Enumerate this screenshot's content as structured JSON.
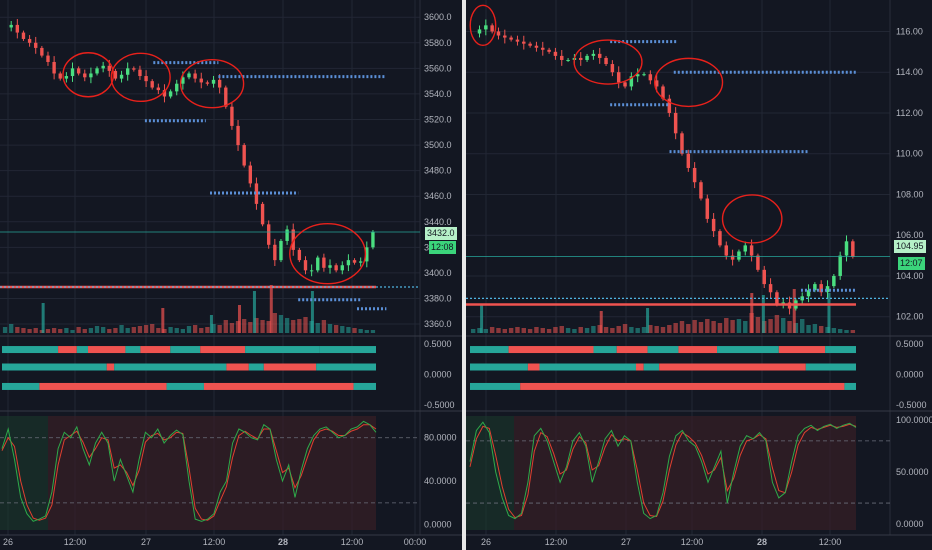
{
  "colors": {
    "background": "#131722",
    "grid": "#222734",
    "axis_text": "#b2b5be",
    "up": "#26a69a",
    "up_bright": "#4ade80",
    "down": "#ef5350",
    "level": "#5b8fd6",
    "annotation": "#e8211b",
    "stoch_k": "#2eaa4a",
    "stoch_d": "#e04030"
  },
  "panels": [
    {
      "id": "left",
      "last_price_label": "3432.0",
      "countdown_label": "12:08",
      "chart_data": [
        {
          "type": "candlestick",
          "title": "",
          "y_ticks": [
            3600.0,
            3580.0,
            3560.0,
            3540.0,
            3520.0,
            3500.0,
            3480.0,
            3460.0,
            3440.0,
            3420.0,
            3400.0,
            3380.0,
            3360.0
          ],
          "y_tick_labels": [
            "3600.0",
            "3580.0",
            "3560.0",
            "3540.0",
            "3520.0",
            "3500.0",
            "3480.0",
            "3460.0",
            "3440.0",
            "3420.0",
            "3400.0",
            "3380.0",
            "3360.0"
          ],
          "ylim": [
            3353,
            3608
          ],
          "x_ticks": [
            "26",
            "12:00",
            "27",
            "12:00",
            "28",
            "12:00",
            "00:00"
          ],
          "last_price": 3432.0,
          "horizontal_line": 3389,
          "support_line": 3389,
          "path": [
            3592,
            3594,
            3588,
            3583,
            3580,
            3576,
            3570,
            3565,
            3556,
            3552,
            3554,
            3560,
            3556,
            3553,
            3556,
            3560,
            3562,
            3558,
            3552,
            3555,
            3560,
            3559,
            3554,
            3550,
            3545,
            3543,
            3538,
            3542,
            3548,
            3553,
            3556,
            3552,
            3549,
            3548,
            3551,
            3545,
            3530,
            3515,
            3500,
            3484,
            3470,
            3454,
            3438,
            3422,
            3410,
            3425,
            3434,
            3418,
            3410,
            3402,
            3402,
            3412,
            3404,
            3406,
            3402,
            3406,
            3410,
            3408,
            3409,
            3420,
            3432
          ],
          "levels": [
            [
              3564.5,
              0.365,
              0.52
            ],
            [
              3553.5,
              0.52,
              0.92
            ],
            [
              3519,
              0.345,
              0.49
            ],
            [
              3462.5,
              0.5,
              0.71
            ],
            [
              3379,
              0.71,
              0.86
            ],
            [
              3372,
              0.85,
              0.92
            ]
          ],
          "annotations": [
            [
              0.21,
              3555,
              0.06,
              22
            ],
            [
              0.335,
              3553,
              0.07,
              24
            ],
            [
              0.505,
              3548,
              0.075,
              24
            ],
            [
              0.78,
              3415,
              0.09,
              30
            ]
          ],
          "volume": [
            6,
            9,
            6,
            5,
            4,
            5,
            3,
            4,
            5,
            4,
            5,
            3,
            6,
            4,
            5,
            7,
            6,
            4,
            5,
            8,
            5,
            6,
            7,
            8,
            9,
            5,
            4,
            6,
            5,
            4,
            7,
            8,
            5,
            6,
            9,
            8,
            13,
            10,
            12,
            14,
            11,
            15,
            13,
            12,
            20,
            18,
            15,
            13,
            14,
            16,
            12,
            10,
            13,
            9,
            8,
            7,
            6,
            5,
            4,
            3,
            3
          ],
          "volume_spikes": [
            [
              0.11,
              30
            ],
            [
              0.43,
              25
            ],
            [
              0.56,
              18
            ],
            [
              0.635,
              28
            ],
            [
              0.675,
              42
            ],
            [
              0.72,
              48
            ],
            [
              0.83,
              42
            ]
          ]
        },
        {
          "type": "table",
          "title": "",
          "y_ticks": [
            0.5,
            0.0,
            -0.5
          ],
          "y_tick_labels": [
            "0.5000",
            "0.0000",
            "-0.5000"
          ],
          "rows": [
            [
              [
                "up",
                0.15
              ],
              [
                "down",
                0.05
              ],
              [
                "up",
                0.03
              ],
              [
                "down",
                0.1
              ],
              [
                "up",
                0.04
              ],
              [
                "down",
                0.08
              ],
              [
                "up",
                0.08
              ],
              [
                "down",
                0.12
              ],
              [
                "up",
                0.2
              ],
              [
                "up",
                0.15
              ]
            ],
            [
              [
                "up",
                0.28
              ],
              [
                "down",
                0.02
              ],
              [
                "up",
                0.3
              ],
              [
                "down",
                0.06
              ],
              [
                "up",
                0.04
              ],
              [
                "down",
                0.14
              ],
              [
                "up",
                0.16
              ]
            ],
            [
              [
                "up",
                0.1
              ],
              [
                "down",
                0.34
              ],
              [
                "up",
                0.1
              ],
              [
                "down",
                0.4
              ],
              [
                "up",
                0.06
              ]
            ]
          ]
        },
        {
          "type": "line",
          "title": "",
          "y_ticks": [
            80,
            40,
            0
          ],
          "y_tick_labels": [
            "80.0000",
            "40.0000",
            "0.0000"
          ],
          "ylim": [
            -5,
            100
          ],
          "bands": [
            80,
            20
          ],
          "k": [
            70,
            88,
            60,
            25,
            10,
            3,
            5,
            8,
            30,
            70,
            85,
            80,
            90,
            70,
            55,
            75,
            85,
            75,
            40,
            60,
            45,
            30,
            60,
            85,
            80,
            88,
            75,
            82,
            87,
            83,
            40,
            5,
            3,
            5,
            10,
            30,
            40,
            75,
            88,
            85,
            80,
            78,
            92,
            88,
            60,
            40,
            55,
            25,
            50,
            70,
            82,
            88,
            90,
            85,
            80,
            82,
            88,
            90,
            95,
            92,
            85
          ],
          "d": [
            68,
            80,
            72,
            40,
            18,
            6,
            4,
            6,
            18,
            55,
            78,
            82,
            86,
            76,
            62,
            70,
            80,
            78,
            52,
            55,
            48,
            36,
            50,
            76,
            82,
            84,
            78,
            80,
            85,
            84,
            52,
            15,
            5,
            4,
            8,
            22,
            35,
            62,
            82,
            86,
            82,
            79,
            88,
            88,
            68,
            48,
            52,
            34,
            45,
            62,
            78,
            86,
            88,
            86,
            82,
            82,
            86,
            88,
            92,
            92,
            88
          ]
        }
      ]
    },
    {
      "id": "right",
      "last_price_label": "104.95",
      "countdown_label": "12:07",
      "chart_data": [
        {
          "type": "candlestick",
          "title": "",
          "y_ticks": [
            116.0,
            114.0,
            112.0,
            110.0,
            108.0,
            106.0,
            104.0,
            102.0
          ],
          "y_tick_labels": [
            "116.00",
            "114.00",
            "112.00",
            "110.00",
            "108.00",
            "106.00",
            "104.00",
            "102.00"
          ],
          "ylim": [
            101.2,
            117.2
          ],
          "x_ticks": [
            "26",
            "12:00",
            "27",
            "12:00",
            "28",
            "12:00"
          ],
          "last_price": 104.95,
          "horizontal_line": 102.9,
          "support_line": 102.6,
          "path": [
            115.9,
            116.1,
            116.3,
            116.0,
            115.8,
            115.7,
            115.6,
            115.5,
            115.4,
            115.3,
            115.2,
            115.1,
            115.0,
            114.8,
            114.6,
            114.6,
            114.7,
            114.6,
            114.8,
            114.9,
            114.7,
            114.4,
            114.0,
            113.5,
            113.3,
            113.8,
            113.9,
            113.9,
            113.6,
            113.3,
            112.7,
            112.0,
            111.0,
            110.0,
            109.3,
            108.6,
            107.8,
            106.8,
            106.2,
            105.5,
            105.0,
            104.8,
            105.2,
            105.5,
            105.0,
            104.3,
            103.6,
            103.2,
            102.6,
            102.7,
            102.4,
            102.8,
            103.0,
            103.3,
            103.6,
            103.2,
            103.5,
            104.0,
            105.0,
            105.7,
            104.95
          ],
          "levels": [
            [
              115.5,
              0.34,
              0.5
            ],
            [
              114.0,
              0.49,
              0.92
            ],
            [
              112.4,
              0.34,
              0.48
            ],
            [
              110.1,
              0.48,
              0.81
            ],
            [
              103.3,
              0.79,
              0.92
            ]
          ],
          "annotations": [
            [
              0.04,
              116.3,
              0.03,
              20
            ],
            [
              0.335,
              114.5,
              0.08,
              22
            ],
            [
              0.525,
              113.5,
              0.08,
              24
            ],
            [
              0.675,
              106.8,
              0.07,
              24
            ]
          ],
          "volume": [
            4,
            5,
            4,
            6,
            5,
            4,
            5,
            6,
            5,
            4,
            6,
            5,
            4,
            6,
            7,
            5,
            4,
            6,
            5,
            7,
            8,
            6,
            5,
            7,
            9,
            6,
            5,
            6,
            8,
            7,
            6,
            8,
            10,
            12,
            9,
            13,
            11,
            14,
            12,
            10,
            15,
            13,
            14,
            12,
            20,
            16,
            12,
            14,
            18,
            15,
            12,
            10,
            14,
            8,
            9,
            7,
            6,
            5,
            4,
            3,
            3
          ],
          "volume_spikes": [
            [
              0.03,
              28
            ],
            [
              0.34,
              22
            ],
            [
              0.46,
              25
            ],
            [
              0.73,
              40
            ],
            [
              0.76,
              38
            ],
            [
              0.84,
              44
            ],
            [
              0.93,
              40
            ]
          ]
        },
        {
          "type": "table",
          "title": "",
          "y_ticks": [
            0.5,
            0.0,
            -0.5
          ],
          "y_tick_labels": [
            "0.5000",
            "0.0000",
            "-0.5000"
          ],
          "rows": [
            [
              [
                "up",
                0.1
              ],
              [
                "down",
                0.22
              ],
              [
                "up",
                0.06
              ],
              [
                "down",
                0.08
              ],
              [
                "up",
                0.08
              ],
              [
                "down",
                0.1
              ],
              [
                "up",
                0.16
              ],
              [
                "down",
                0.12
              ],
              [
                "up",
                0.08
              ]
            ],
            [
              [
                "up",
                0.15
              ],
              [
                "down",
                0.03
              ],
              [
                "up",
                0.25
              ],
              [
                "down",
                0.02
              ],
              [
                "up",
                0.04
              ],
              [
                "down",
                0.38
              ],
              [
                "up",
                0.13
              ]
            ],
            [
              [
                "up",
                0.13
              ],
              [
                "down",
                0.84
              ],
              [
                "up",
                0.03
              ]
            ]
          ]
        },
        {
          "type": "line",
          "title": "",
          "y_ticks": [
            100,
            50,
            0
          ],
          "y_tick_labels": [
            "100.0000",
            "50.0000",
            "0.0000"
          ],
          "ylim": [
            -6,
            104
          ],
          "bands": [
            80,
            20
          ],
          "k": [
            60,
            90,
            98,
            88,
            50,
            25,
            8,
            5,
            10,
            40,
            85,
            92,
            80,
            60,
            40,
            55,
            80,
            88,
            75,
            40,
            60,
            82,
            90,
            75,
            85,
            80,
            40,
            10,
            5,
            8,
            30,
            65,
            85,
            90,
            80,
            75,
            60,
            40,
            55,
            70,
            20,
            50,
            75,
            85,
            82,
            88,
            80,
            40,
            25,
            30,
            60,
            85,
            92,
            95,
            90,
            94,
            96,
            92,
            95,
            97,
            93
          ],
          "d": [
            55,
            82,
            94,
            92,
            66,
            36,
            14,
            6,
            8,
            28,
            70,
            88,
            84,
            68,
            48,
            52,
            72,
            84,
            78,
            52,
            56,
            74,
            86,
            80,
            82,
            80,
            52,
            20,
            8,
            7,
            22,
            52,
            76,
            88,
            84,
            78,
            66,
            48,
            52,
            64,
            32,
            44,
            66,
            80,
            82,
            86,
            82,
            54,
            32,
            30,
            50,
            76,
            88,
            93,
            91,
            93,
            95,
            93,
            94,
            96,
            94
          ]
        }
      ]
    }
  ]
}
